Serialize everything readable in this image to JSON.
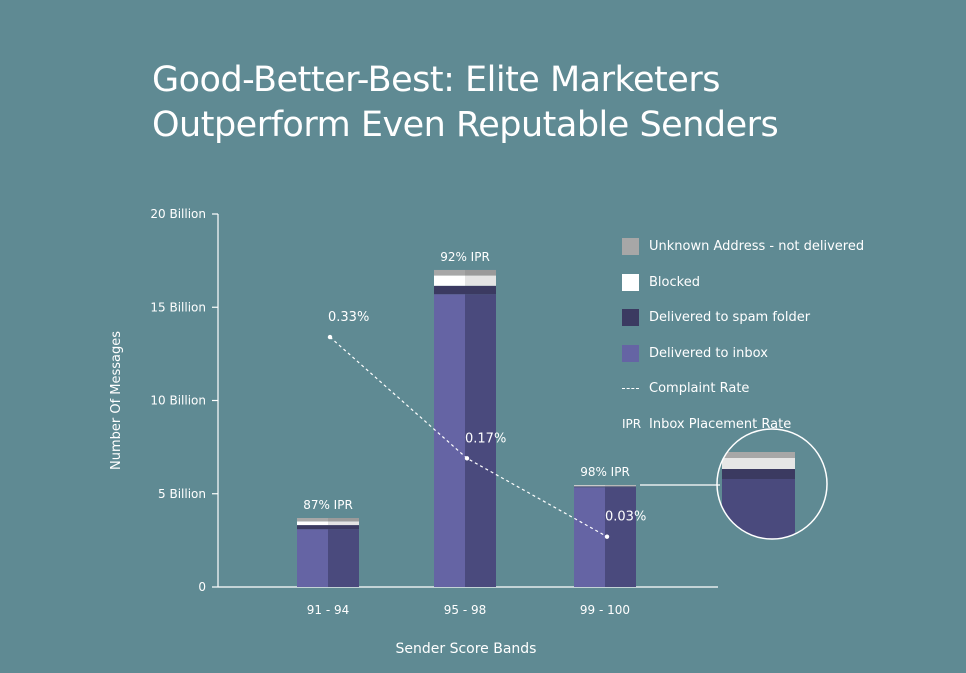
{
  "title": {
    "line1": "Good-Better-Best: Elite Marketers",
    "line2": "Outperform Even Reputable Senders"
  },
  "colors": {
    "background": "#5f8a93",
    "unknown": "#a7a7a7",
    "blocked": "#ffffff",
    "spam": "#3b3a61",
    "inbox": "#6564a4",
    "inbox_shade": "#4a4a7d"
  },
  "legend": [
    {
      "key": "unknown",
      "label": "Unknown Address - not delivered"
    },
    {
      "key": "blocked",
      "label": "Blocked"
    },
    {
      "key": "spam",
      "label": "Delivered to spam folder"
    },
    {
      "key": "inbox",
      "label": "Delivered to inbox"
    },
    {
      "key": "complaint",
      "label": "Complaint Rate",
      "symbol": "dashed-line"
    },
    {
      "key": "ipr",
      "label": "Inbox Placement Rate",
      "symbol_text": "IPR"
    }
  ],
  "chart_data": {
    "type": "bar",
    "stacked": true,
    "title": "Good-Better-Best: Elite Marketers Outperform Even Reputable Senders",
    "xlabel": "Sender Score Bands",
    "ylabel": "Number Of Messages",
    "ylim": [
      0,
      20
    ],
    "y_unit": "Billion",
    "y_ticks": [
      {
        "value": 0,
        "label": "0"
      },
      {
        "value": 5,
        "label": "5 Billion"
      },
      {
        "value": 10,
        "label": "10 Billion"
      },
      {
        "value": 15,
        "label": "15 Billion"
      },
      {
        "value": 20,
        "label": "20 Billion"
      }
    ],
    "categories": [
      "91 - 94",
      "95 - 98",
      "99 - 100"
    ],
    "series": [
      {
        "name": "Delivered to inbox",
        "key": "inbox",
        "values": [
          3.1,
          15.7,
          5.35
        ]
      },
      {
        "name": "Delivered to spam folder",
        "key": "spam",
        "values": [
          0.22,
          0.45,
          0.05
        ]
      },
      {
        "name": "Blocked",
        "key": "blocked",
        "values": [
          0.2,
          0.55,
          0.04
        ]
      },
      {
        "name": "Unknown Address - not delivered",
        "key": "unknown",
        "values": [
          0.18,
          0.3,
          0.03
        ]
      }
    ],
    "ipr_labels": [
      "87% IPR",
      "92% IPR",
      "98% IPR"
    ],
    "complaint_rate": {
      "name": "Complaint Rate",
      "values": [
        13.4,
        6.9,
        2.7
      ],
      "labels": [
        "0.33%",
        "0.17%",
        "0.03%"
      ]
    },
    "grid": false,
    "legend_position": "right",
    "zoom_callout": {
      "category": "99 - 100"
    }
  }
}
